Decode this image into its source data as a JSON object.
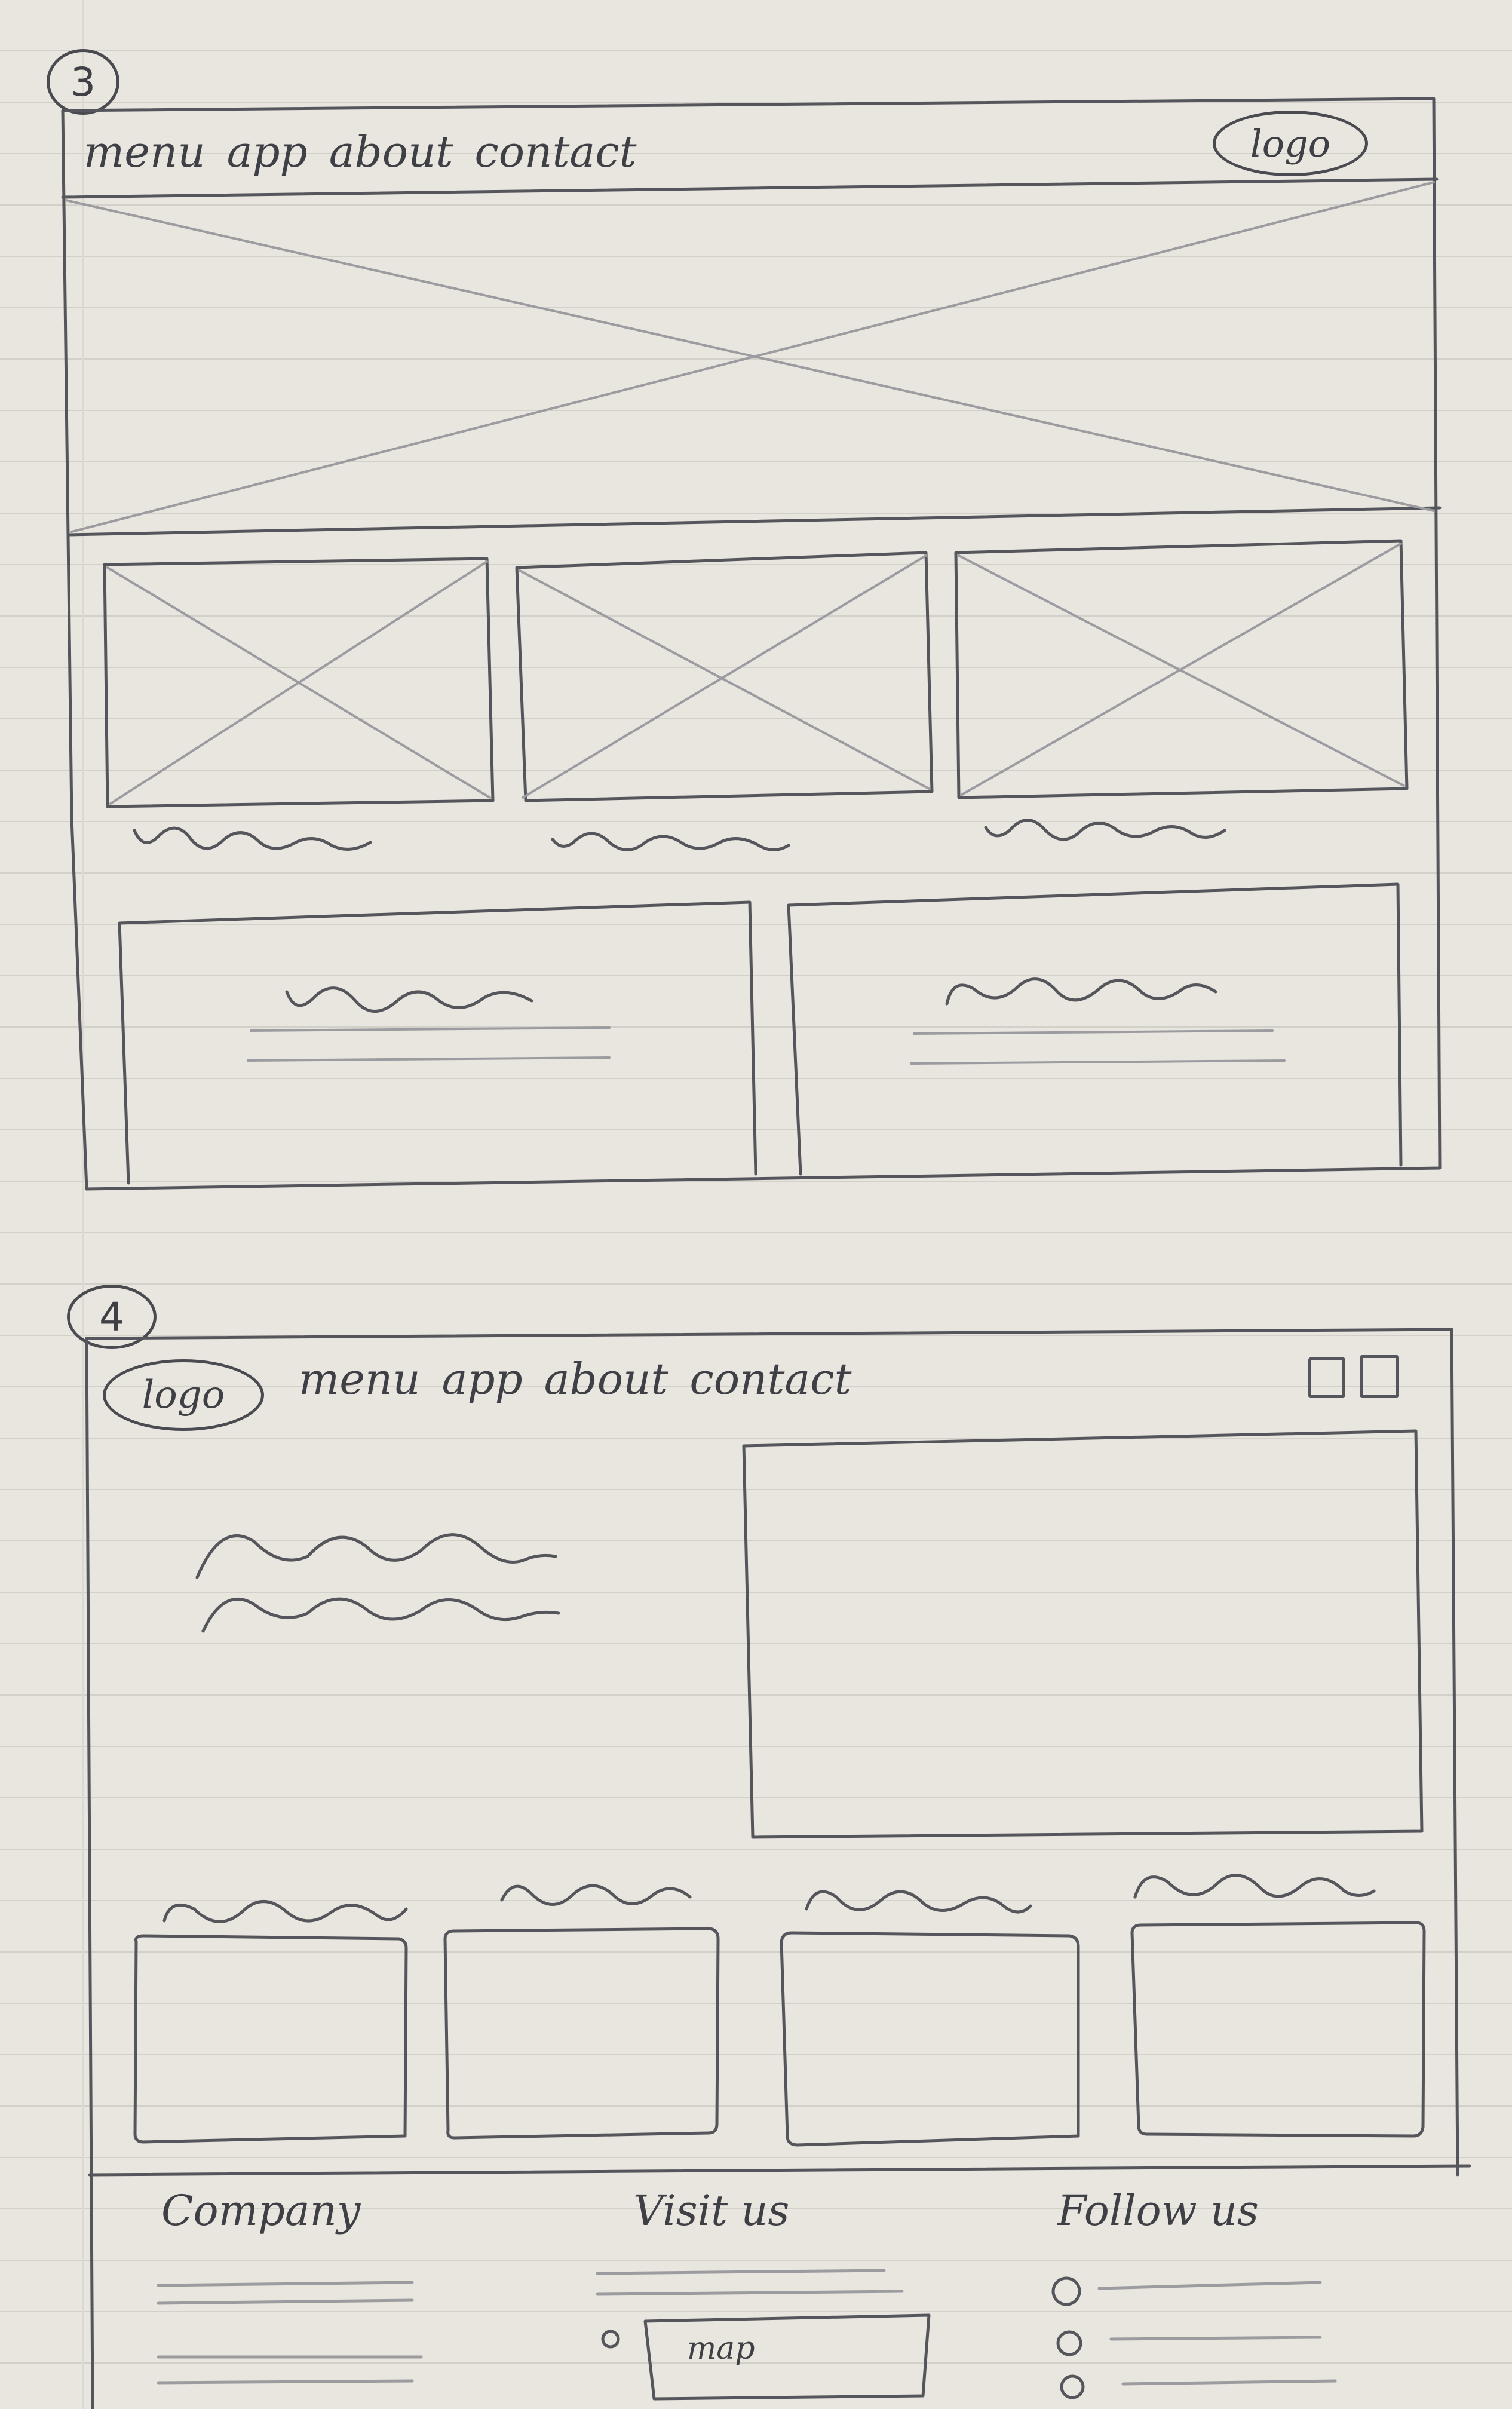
{
  "wireframe_3": {
    "number": "3",
    "nav": [
      "menu",
      "app",
      "about",
      "contact"
    ],
    "logo": "logo"
  },
  "wireframe_4": {
    "number": "4",
    "logo": "logo",
    "nav": [
      "menu",
      "app",
      "about",
      "contact"
    ],
    "footer": {
      "company": "Company",
      "visit": "Visit us",
      "follow": "Follow us",
      "map": "map"
    }
  }
}
